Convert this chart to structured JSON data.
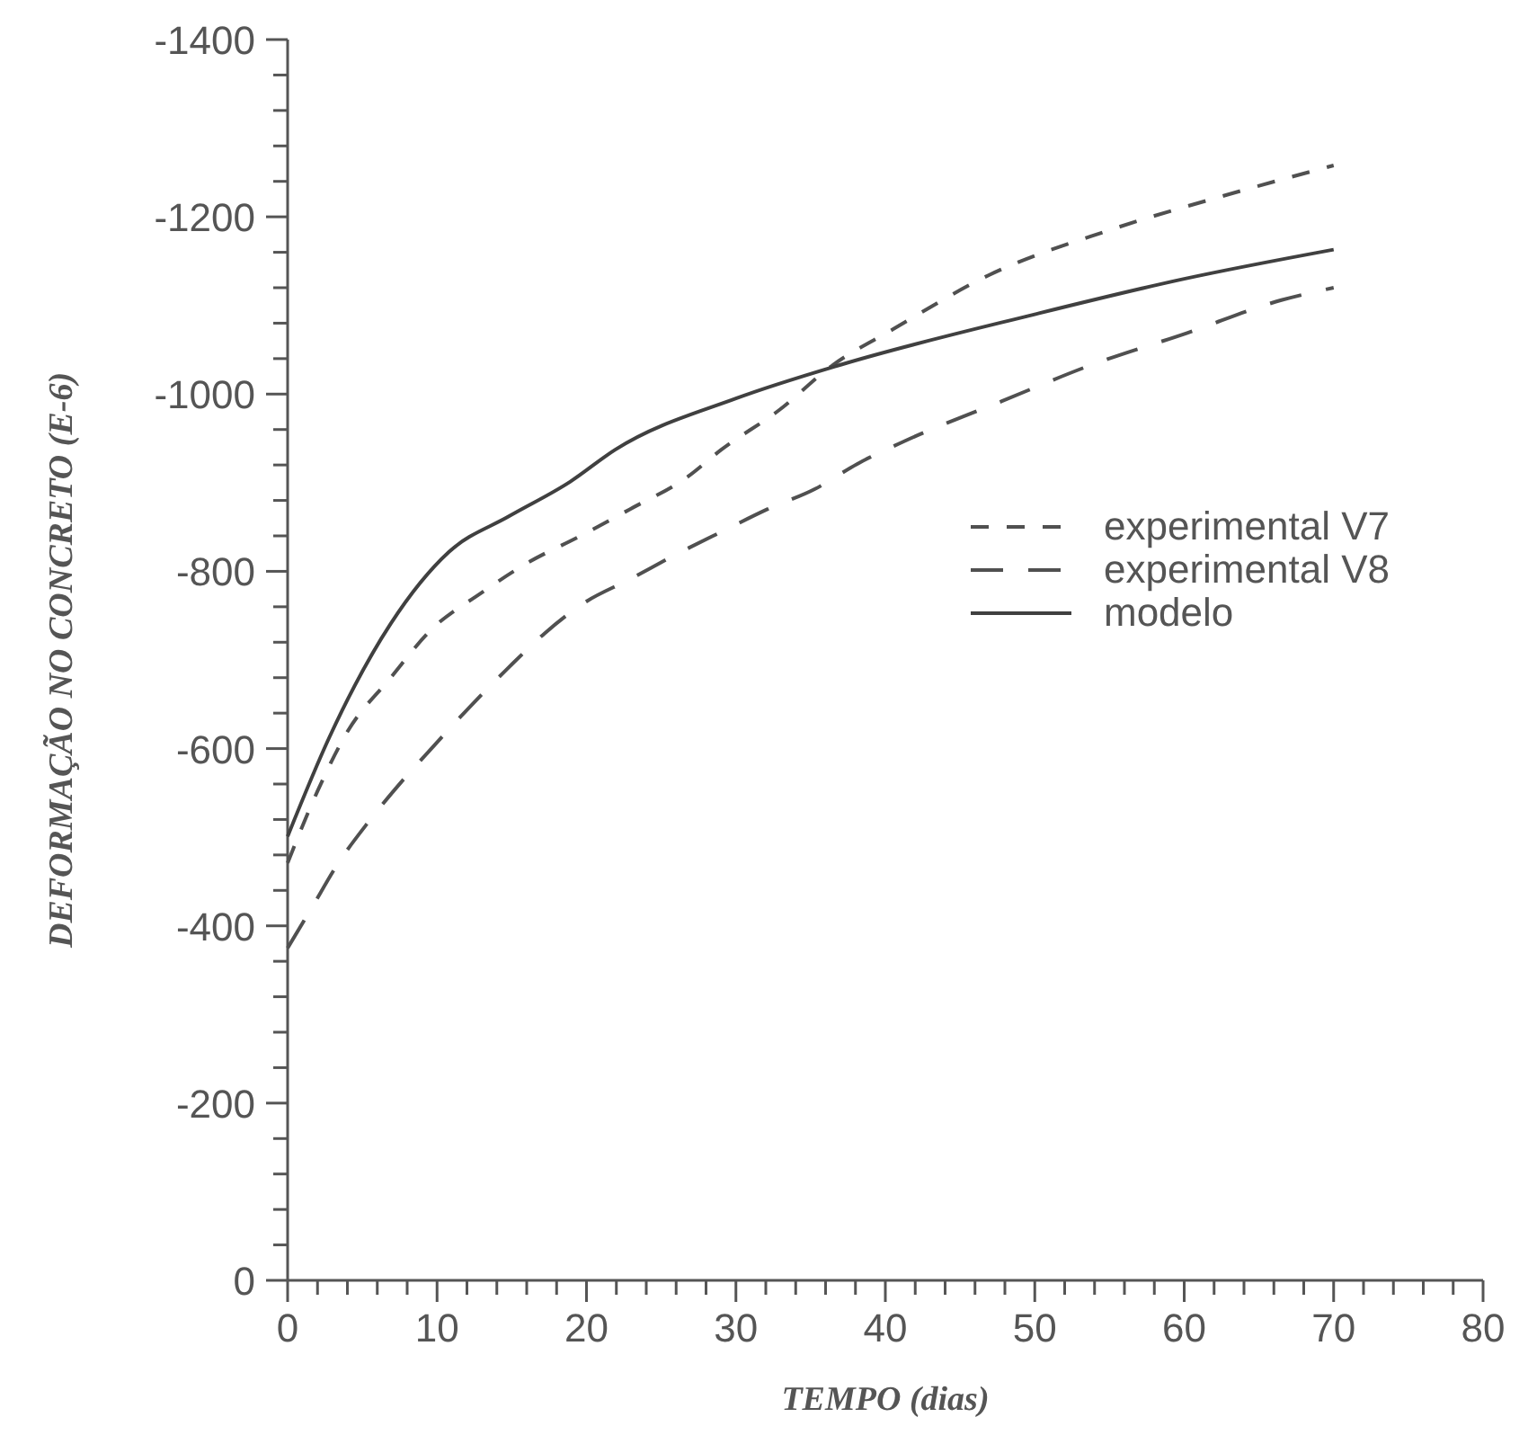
{
  "chart_data": {
    "type": "line",
    "xlabel": "TEMPO (dias)",
    "ylabel": "DEFORMAÇÃO NO CONCRETO (E-6)",
    "xlim": [
      0,
      80
    ],
    "ylim": [
      0,
      -1400
    ],
    "xticks": [
      0,
      {
        "value": 2,
        "label": null
      },
      {
        "value": 4,
        "label": null
      },
      {
        "value": 6,
        "label": null
      },
      {
        "value": 8,
        "label": null
      },
      10,
      {
        "value": 12,
        "label": null
      },
      {
        "value": 14,
        "label": null
      },
      {
        "value": 16,
        "label": null
      },
      {
        "value": 18,
        "label": null
      },
      20,
      {
        "value": 22,
        "label": null
      },
      {
        "value": 24,
        "label": null
      },
      {
        "value": 26,
        "label": null
      },
      {
        "value": 28,
        "label": null
      },
      30,
      {
        "value": 32,
        "label": null
      },
      {
        "value": 34,
        "label": null
      },
      {
        "value": 36,
        "label": null
      },
      {
        "value": 38,
        "label": null
      },
      40,
      {
        "value": 42,
        "label": null
      },
      {
        "value": 44,
        "label": null
      },
      {
        "value": 46,
        "label": null
      },
      {
        "value": 48,
        "label": null
      },
      50,
      {
        "value": 52,
        "label": null
      },
      {
        "value": 54,
        "label": null
      },
      {
        "value": 56,
        "label": null
      },
      {
        "value": 58,
        "label": null
      },
      60,
      {
        "value": 62,
        "label": null
      },
      {
        "value": 64,
        "label": null
      },
      {
        "value": 66,
        "label": null
      },
      {
        "value": 68,
        "label": null
      },
      70,
      {
        "value": 72,
        "label": null
      },
      {
        "value": 74,
        "label": null
      },
      {
        "value": 76,
        "label": null
      },
      {
        "value": 78,
        "label": null
      },
      80
    ],
    "yticks": [
      0,
      {
        "value": -40,
        "label": null
      },
      {
        "value": -80,
        "label": null
      },
      {
        "value": -120,
        "label": null
      },
      {
        "value": -160,
        "label": null
      },
      -200,
      {
        "value": -240,
        "label": null
      },
      {
        "value": -280,
        "label": null
      },
      {
        "value": -320,
        "label": null
      },
      {
        "value": -360,
        "label": null
      },
      -400,
      {
        "value": -440,
        "label": null
      },
      {
        "value": -480,
        "label": null
      },
      {
        "value": -520,
        "label": null
      },
      {
        "value": -560,
        "label": null
      },
      -600,
      {
        "value": -640,
        "label": null
      },
      {
        "value": -680,
        "label": null
      },
      {
        "value": -720,
        "label": null
      },
      {
        "value": -760,
        "label": null
      },
      -800,
      {
        "value": -840,
        "label": null
      },
      {
        "value": -880,
        "label": null
      },
      {
        "value": -920,
        "label": null
      },
      {
        "value": -960,
        "label": null
      },
      -1000,
      {
        "value": -1040,
        "label": null
      },
      {
        "value": -1080,
        "label": null
      },
      {
        "value": -1120,
        "label": null
      },
      {
        "value": -1160,
        "label": null
      },
      -1200,
      {
        "value": -1240,
        "label": null
      },
      {
        "value": -1280,
        "label": null
      },
      {
        "value": -1320,
        "label": null
      },
      {
        "value": -1360,
        "label": null
      },
      -1400
    ],
    "grid": false,
    "legend": "right",
    "series": [
      {
        "name": "experimental V7",
        "color": "#505050",
        "line_style": "dashed",
        "x": [
          0,
          2,
          4,
          6.9,
          9.6,
          12.9,
          16,
          19.6,
          22.9,
          26.8,
          29,
          32.9,
          36.5,
          40.5,
          46.9,
          55,
          62.9,
          70
        ],
        "values": [
          -471,
          -552,
          -619,
          -680,
          -734,
          -775,
          -809,
          -840,
          -870,
          -907,
          -937,
          -982,
          -1033,
          -1073,
          -1134,
          -1185,
          -1225,
          -1258
        ]
      },
      {
        "name": "experimental V8",
        "color": "#505050",
        "line_style": "dashed",
        "x": [
          0,
          1.6,
          3.4,
          5.4,
          7.8,
          10,
          12.3,
          14.7,
          17.2,
          19.9,
          22.9,
          26.1,
          29.2,
          32.1,
          35.3,
          38.1,
          41.3,
          47.8,
          53.8,
          60.2,
          66.5,
          70
        ],
        "values": [
          -375,
          -420,
          -471,
          -517,
          -566,
          -607,
          -649,
          -690,
          -730,
          -765,
          -791,
          -820,
          -846,
          -870,
          -893,
          -921,
          -947,
          -992,
          -1033,
          -1069,
          -1106,
          -1120
        ]
      },
      {
        "name": "modelo",
        "color": "#404040",
        "line_style": "solid",
        "x": [
          0,
          2.8,
          6.9,
          10.8,
          14.8,
          18.9,
          21.9,
          30,
          37,
          50,
          60,
          70
        ],
        "values": [
          -501,
          -613,
          -741,
          -822,
          -862,
          -901,
          -937,
          -995,
          -1033,
          -1090,
          -1130,
          -1163
        ]
      }
    ]
  }
}
